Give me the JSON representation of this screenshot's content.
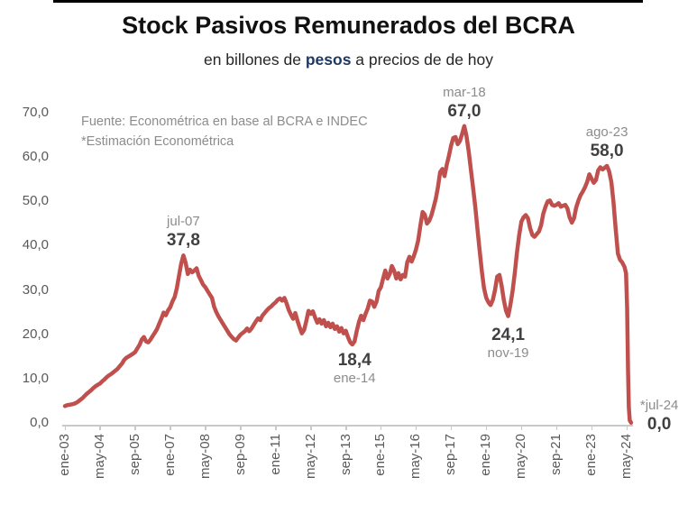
{
  "header": {
    "title": "Stock Pasivos Remunerados del BCRA",
    "subtitle_prefix": "en billones de ",
    "subtitle_bold": "pesos",
    "subtitle_suffix": " a precios de de hoy"
  },
  "source": {
    "line1": "Fuente: Econométrica en base al BCRA e INDEC",
    "line2": "*Estimación Econométrica"
  },
  "colors": {
    "line": "#C0504D",
    "subtitle_accent": "#1F3864",
    "axis": "#C9C9C9",
    "tick_label": "#595959",
    "annotation_date": "#8C8C8C",
    "annotation_value": "#404040",
    "source_text": "#8C8C8C",
    "title_text": "#111111"
  },
  "chart_data": {
    "type": "line",
    "title": "Stock Pasivos Remunerados del BCRA",
    "subtitle": "en billones de pesos a precios de de hoy",
    "ylabel": "",
    "xlabel": "",
    "ylim": [
      0,
      70
    ],
    "grid": false,
    "legend": "none",
    "x_unit": "months since ene-03",
    "y_ticks": [
      {
        "v": 0,
        "label": "0,0"
      },
      {
        "v": 10,
        "label": "10,0"
      },
      {
        "v": 20,
        "label": "20,0"
      },
      {
        "v": 30,
        "label": "30,0"
      },
      {
        "v": 40,
        "label": "40,0"
      },
      {
        "v": 50,
        "label": "50,0"
      },
      {
        "v": 60,
        "label": "60,0"
      },
      {
        "v": 70,
        "label": "70,0"
      }
    ],
    "x_ticks": [
      {
        "m": 0,
        "label": "ene-03"
      },
      {
        "m": 16,
        "label": "may-04"
      },
      {
        "m": 32,
        "label": "sep-05"
      },
      {
        "m": 48,
        "label": "ene-07"
      },
      {
        "m": 64,
        "label": "may-08"
      },
      {
        "m": 80,
        "label": "sep-09"
      },
      {
        "m": 96,
        "label": "ene-11"
      },
      {
        "m": 112,
        "label": "may-12"
      },
      {
        "m": 128,
        "label": "sep-13"
      },
      {
        "m": 144,
        "label": "ene-15"
      },
      {
        "m": 160,
        "label": "may-16"
      },
      {
        "m": 176,
        "label": "sep-17"
      },
      {
        "m": 192,
        "label": "ene-19"
      },
      {
        "m": 208,
        "label": "may-20"
      },
      {
        "m": 224,
        "label": "sep-21"
      },
      {
        "m": 240,
        "label": "ene-23"
      },
      {
        "m": 256,
        "label": "may-24"
      }
    ],
    "annotations": [
      {
        "date": "jul-07",
        "value_label": "37,8",
        "m": 54,
        "v": 37.8,
        "placement": "above"
      },
      {
        "date": "mar-18",
        "value_label": "67,0",
        "m": 182,
        "v": 67.0,
        "placement": "above"
      },
      {
        "date": "ene-14",
        "value_label": "18,4",
        "m": 132,
        "v": 18.4,
        "placement": "below"
      },
      {
        "date": "nov-19",
        "value_label": "24,1",
        "m": 202,
        "v": 24.1,
        "placement": "below"
      },
      {
        "date": "ago-23",
        "value_label": "58,0",
        "m": 247,
        "v": 58.0,
        "placement": "above"
      },
      {
        "date": "*jul-24",
        "value_label": "0,0",
        "m": 258,
        "v": 0.0,
        "placement": "right"
      }
    ],
    "points": [
      [
        0,
        3.8
      ],
      [
        1,
        4.0
      ],
      [
        2,
        4.1
      ],
      [
        3,
        4.2
      ],
      [
        4,
        4.3
      ],
      [
        5,
        4.5
      ],
      [
        6,
        4.8
      ],
      [
        7,
        5.2
      ],
      [
        8,
        5.6
      ],
      [
        9,
        6.1
      ],
      [
        10,
        6.6
      ],
      [
        11,
        7.0
      ],
      [
        12,
        7.4
      ],
      [
        13,
        7.9
      ],
      [
        14,
        8.3
      ],
      [
        15,
        8.6
      ],
      [
        16,
        8.9
      ],
      [
        17,
        9.4
      ],
      [
        18,
        9.8
      ],
      [
        19,
        10.3
      ],
      [
        20,
        10.7
      ],
      [
        21,
        11.0
      ],
      [
        22,
        11.4
      ],
      [
        23,
        11.8
      ],
      [
        24,
        12.2
      ],
      [
        25,
        12.8
      ],
      [
        26,
        13.4
      ],
      [
        27,
        14.2
      ],
      [
        28,
        14.7
      ],
      [
        29,
        15.0
      ],
      [
        30,
        15.3
      ],
      [
        31,
        15.6
      ],
      [
        32,
        16.0
      ],
      [
        33,
        16.8
      ],
      [
        34,
        17.6
      ],
      [
        35,
        18.8
      ],
      [
        36,
        19.4
      ],
      [
        37,
        18.4
      ],
      [
        38,
        18.2
      ],
      [
        39,
        18.8
      ],
      [
        40,
        19.6
      ],
      [
        41,
        20.4
      ],
      [
        42,
        21.2
      ],
      [
        43,
        22.4
      ],
      [
        44,
        23.6
      ],
      [
        45,
        24.9
      ],
      [
        46,
        24.3
      ],
      [
        47,
        25.4
      ],
      [
        48,
        26.1
      ],
      [
        49,
        27.4
      ],
      [
        50,
        28.4
      ],
      [
        51,
        30.4
      ],
      [
        52,
        33.2
      ],
      [
        53,
        36.0
      ],
      [
        54,
        37.8
      ],
      [
        55,
        36.2
      ],
      [
        56,
        33.6
      ],
      [
        57,
        34.6
      ],
      [
        58,
        34.0
      ],
      [
        59,
        34.4
      ],
      [
        60,
        34.9
      ],
      [
        61,
        33.2
      ],
      [
        62,
        32.2
      ],
      [
        63,
        31.2
      ],
      [
        64,
        30.6
      ],
      [
        65,
        29.8
      ],
      [
        66,
        29.0
      ],
      [
        67,
        28.2
      ],
      [
        68,
        26.2
      ],
      [
        69,
        25.0
      ],
      [
        70,
        24.0
      ],
      [
        71,
        23.2
      ],
      [
        72,
        22.4
      ],
      [
        73,
        21.6
      ],
      [
        74,
        20.8
      ],
      [
        75,
        20.0
      ],
      [
        76,
        19.4
      ],
      [
        77,
        18.9
      ],
      [
        78,
        18.6
      ],
      [
        79,
        19.3
      ],
      [
        80,
        19.9
      ],
      [
        81,
        20.3
      ],
      [
        82,
        20.7
      ],
      [
        83,
        21.3
      ],
      [
        84,
        20.7
      ],
      [
        85,
        21.3
      ],
      [
        86,
        22.1
      ],
      [
        87,
        22.9
      ],
      [
        88,
        23.6
      ],
      [
        89,
        23.2
      ],
      [
        90,
        24.2
      ],
      [
        91,
        24.8
      ],
      [
        92,
        25.4
      ],
      [
        93,
        25.9
      ],
      [
        94,
        26.3
      ],
      [
        95,
        26.8
      ],
      [
        96,
        27.2
      ],
      [
        97,
        27.8
      ],
      [
        98,
        28.1
      ],
      [
        99,
        27.6
      ],
      [
        100,
        28.2
      ],
      [
        101,
        27.0
      ],
      [
        102,
        25.5
      ],
      [
        103,
        24.4
      ],
      [
        104,
        23.5
      ],
      [
        105,
        24.8
      ],
      [
        106,
        23.0
      ],
      [
        107,
        21.5
      ],
      [
        108,
        20.2
      ],
      [
        109,
        21.0
      ],
      [
        110,
        23.0
      ],
      [
        111,
        25.3
      ],
      [
        112,
        24.6
      ],
      [
        113,
        25.2
      ],
      [
        114,
        23.8
      ],
      [
        115,
        22.6
      ],
      [
        116,
        23.4
      ],
      [
        117,
        22.4
      ],
      [
        118,
        23.2
      ],
      [
        119,
        21.8
      ],
      [
        120,
        22.6
      ],
      [
        121,
        21.6
      ],
      [
        122,
        22.4
      ],
      [
        123,
        21.2
      ],
      [
        124,
        21.8
      ],
      [
        125,
        20.6
      ],
      [
        126,
        21.4
      ],
      [
        127,
        20.2
      ],
      [
        128,
        20.8
      ],
      [
        129,
        19.4
      ],
      [
        130,
        18.2
      ],
      [
        131,
        17.7
      ],
      [
        132,
        18.4
      ],
      [
        133,
        20.8
      ],
      [
        134,
        22.8
      ],
      [
        135,
        24.2
      ],
      [
        136,
        23.2
      ],
      [
        137,
        24.6
      ],
      [
        138,
        25.8
      ],
      [
        139,
        27.6
      ],
      [
        140,
        27.4
      ],
      [
        141,
        26.2
      ],
      [
        142,
        27.4
      ],
      [
        143,
        29.8
      ],
      [
        144,
        30.6
      ],
      [
        145,
        32.6
      ],
      [
        146,
        34.4
      ],
      [
        147,
        32.6
      ],
      [
        148,
        33.6
      ],
      [
        149,
        35.4
      ],
      [
        150,
        34.4
      ],
      [
        151,
        32.6
      ],
      [
        152,
        33.8
      ],
      [
        153,
        32.4
      ],
      [
        154,
        33.4
      ],
      [
        155,
        33.0
      ],
      [
        156,
        36.2
      ],
      [
        157,
        37.5
      ],
      [
        158,
        36.4
      ],
      [
        159,
        37.6
      ],
      [
        160,
        39.2
      ],
      [
        161,
        41.2
      ],
      [
        162,
        44.5
      ],
      [
        163,
        47.6
      ],
      [
        164,
        47.0
      ],
      [
        165,
        45.0
      ],
      [
        166,
        45.6
      ],
      [
        167,
        46.8
      ],
      [
        168,
        48.6
      ],
      [
        169,
        50.6
      ],
      [
        170,
        53.2
      ],
      [
        171,
        56.6
      ],
      [
        172,
        57.3
      ],
      [
        173,
        55.7
      ],
      [
        174,
        58.2
      ],
      [
        175,
        60.3
      ],
      [
        176,
        62.6
      ],
      [
        177,
        64.3
      ],
      [
        178,
        64.5
      ],
      [
        179,
        62.9
      ],
      [
        180,
        63.6
      ],
      [
        181,
        65.2
      ],
      [
        182,
        67.0
      ],
      [
        183,
        64.8
      ],
      [
        184,
        61.3
      ],
      [
        185,
        57.2
      ],
      [
        186,
        53.2
      ],
      [
        187,
        48.8
      ],
      [
        188,
        43.8
      ],
      [
        189,
        38.8
      ],
      [
        190,
        34.2
      ],
      [
        191,
        30.4
      ],
      [
        192,
        28.2
      ],
      [
        193,
        27.2
      ],
      [
        194,
        26.6
      ],
      [
        195,
        27.8
      ],
      [
        196,
        30.0
      ],
      [
        197,
        33.0
      ],
      [
        198,
        33.4
      ],
      [
        199,
        31.0
      ],
      [
        200,
        27.8
      ],
      [
        201,
        25.3
      ],
      [
        202,
        24.1
      ],
      [
        203,
        26.6
      ],
      [
        204,
        29.8
      ],
      [
        205,
        33.8
      ],
      [
        206,
        38.4
      ],
      [
        207,
        42.4
      ],
      [
        208,
        45.4
      ],
      [
        209,
        46.4
      ],
      [
        210,
        46.9
      ],
      [
        211,
        46.2
      ],
      [
        212,
        44.0
      ],
      [
        213,
        42.4
      ],
      [
        214,
        42.0
      ],
      [
        215,
        42.6
      ],
      [
        216,
        43.2
      ],
      [
        217,
        44.6
      ],
      [
        218,
        47.2
      ],
      [
        219,
        48.8
      ],
      [
        220,
        50.0
      ],
      [
        221,
        50.2
      ],
      [
        222,
        49.2
      ],
      [
        223,
        49.0
      ],
      [
        224,
        49.2
      ],
      [
        225,
        49.6
      ],
      [
        226,
        48.8
      ],
      [
        227,
        49.0
      ],
      [
        228,
        49.2
      ],
      [
        229,
        48.4
      ],
      [
        230,
        46.4
      ],
      [
        231,
        45.2
      ],
      [
        232,
        46.2
      ],
      [
        233,
        48.6
      ],
      [
        234,
        50.2
      ],
      [
        235,
        51.4
      ],
      [
        236,
        52.2
      ],
      [
        237,
        53.2
      ],
      [
        238,
        54.4
      ],
      [
        239,
        56.1
      ],
      [
        240,
        55.1
      ],
      [
        241,
        54.2
      ],
      [
        242,
        54.8
      ],
      [
        243,
        57.0
      ],
      [
        244,
        57.7
      ],
      [
        245,
        57.2
      ],
      [
        246,
        57.6
      ],
      [
        247,
        58.0
      ],
      [
        248,
        56.8
      ],
      [
        249,
        54.4
      ],
      [
        250,
        49.8
      ],
      [
        251,
        43.8
      ],
      [
        252,
        38.2
      ],
      [
        253,
        36.8
      ],
      [
        254,
        36.2
      ],
      [
        255,
        35.2
      ],
      [
        255.7,
        33.8
      ],
      [
        256.2,
        26.0
      ],
      [
        256.6,
        12.0
      ],
      [
        257,
        3.5
      ],
      [
        257.4,
        0.6
      ],
      [
        258,
        0.05
      ]
    ]
  }
}
